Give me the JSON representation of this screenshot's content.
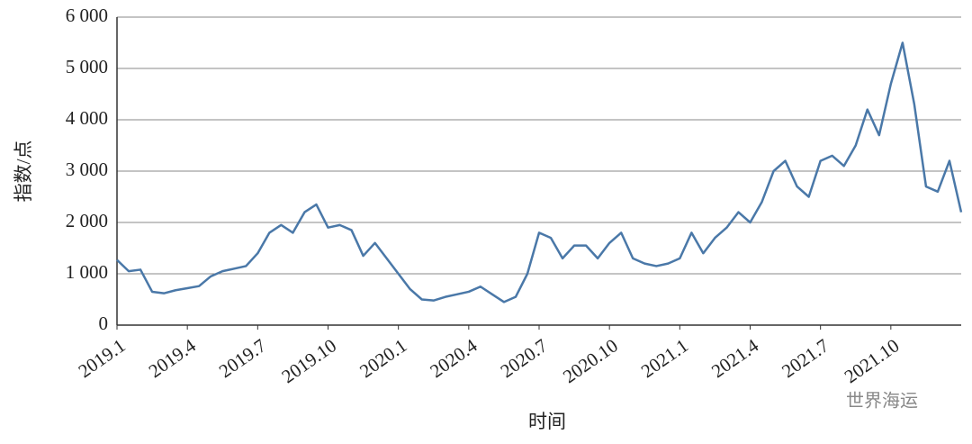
{
  "chart_data": {
    "type": "line",
    "ylabel": "指数/点",
    "xlabel": "时间",
    "watermark": "世界海运",
    "categories": [
      "2019.1",
      null,
      null,
      null,
      null,
      null,
      "2019.4",
      null,
      null,
      null,
      null,
      null,
      "2019.7",
      null,
      null,
      null,
      null,
      null,
      "2019.10",
      null,
      null,
      null,
      null,
      null,
      "2020.1",
      null,
      null,
      null,
      null,
      null,
      "2020.4",
      null,
      null,
      null,
      null,
      null,
      "2020.7",
      null,
      null,
      null,
      null,
      null,
      "2020.10",
      null,
      null,
      null,
      null,
      null,
      "2021.1",
      null,
      null,
      null,
      null,
      null,
      "2021.4",
      null,
      null,
      null,
      null,
      null,
      "2021.7",
      null,
      null,
      null,
      null,
      null,
      "2021.10",
      null,
      null,
      null,
      null,
      null,
      null
    ],
    "series": [
      {
        "color": "#4a78a8",
        "values": [
          1270,
          1050,
          1080,
          650,
          620,
          680,
          720,
          760,
          950,
          1050,
          1100,
          1150,
          1400,
          1800,
          1950,
          1800,
          2200,
          2350,
          1900,
          1950,
          1850,
          1350,
          1600,
          1300,
          1000,
          700,
          500,
          480,
          550,
          600,
          650,
          750,
          600,
          450,
          550,
          1000,
          1800,
          1700,
          1300,
          1550,
          1550,
          1300,
          1600,
          1800,
          1300,
          1200,
          1150,
          1200,
          1300,
          1800,
          1400,
          1700,
          1900,
          2200,
          2000,
          2400,
          3000,
          3200,
          2700,
          2500,
          3200,
          3300,
          3100,
          3500,
          4200,
          3700,
          4700,
          5500,
          4300,
          2700,
          2600,
          3200,
          2200
        ]
      }
    ],
    "ylim": [
      0,
      6000
    ],
    "yticks": [
      0,
      {
        "value": 1000,
        "label": "1 000"
      },
      {
        "value": 2000,
        "label": "2 000"
      },
      {
        "value": 3000,
        "label": "3 000"
      },
      {
        "value": 4000,
        "label": "4 000"
      },
      {
        "value": 5000,
        "label": "5 000"
      },
      {
        "value": 6000,
        "label": "6 000"
      }
    ],
    "grid": true
  }
}
